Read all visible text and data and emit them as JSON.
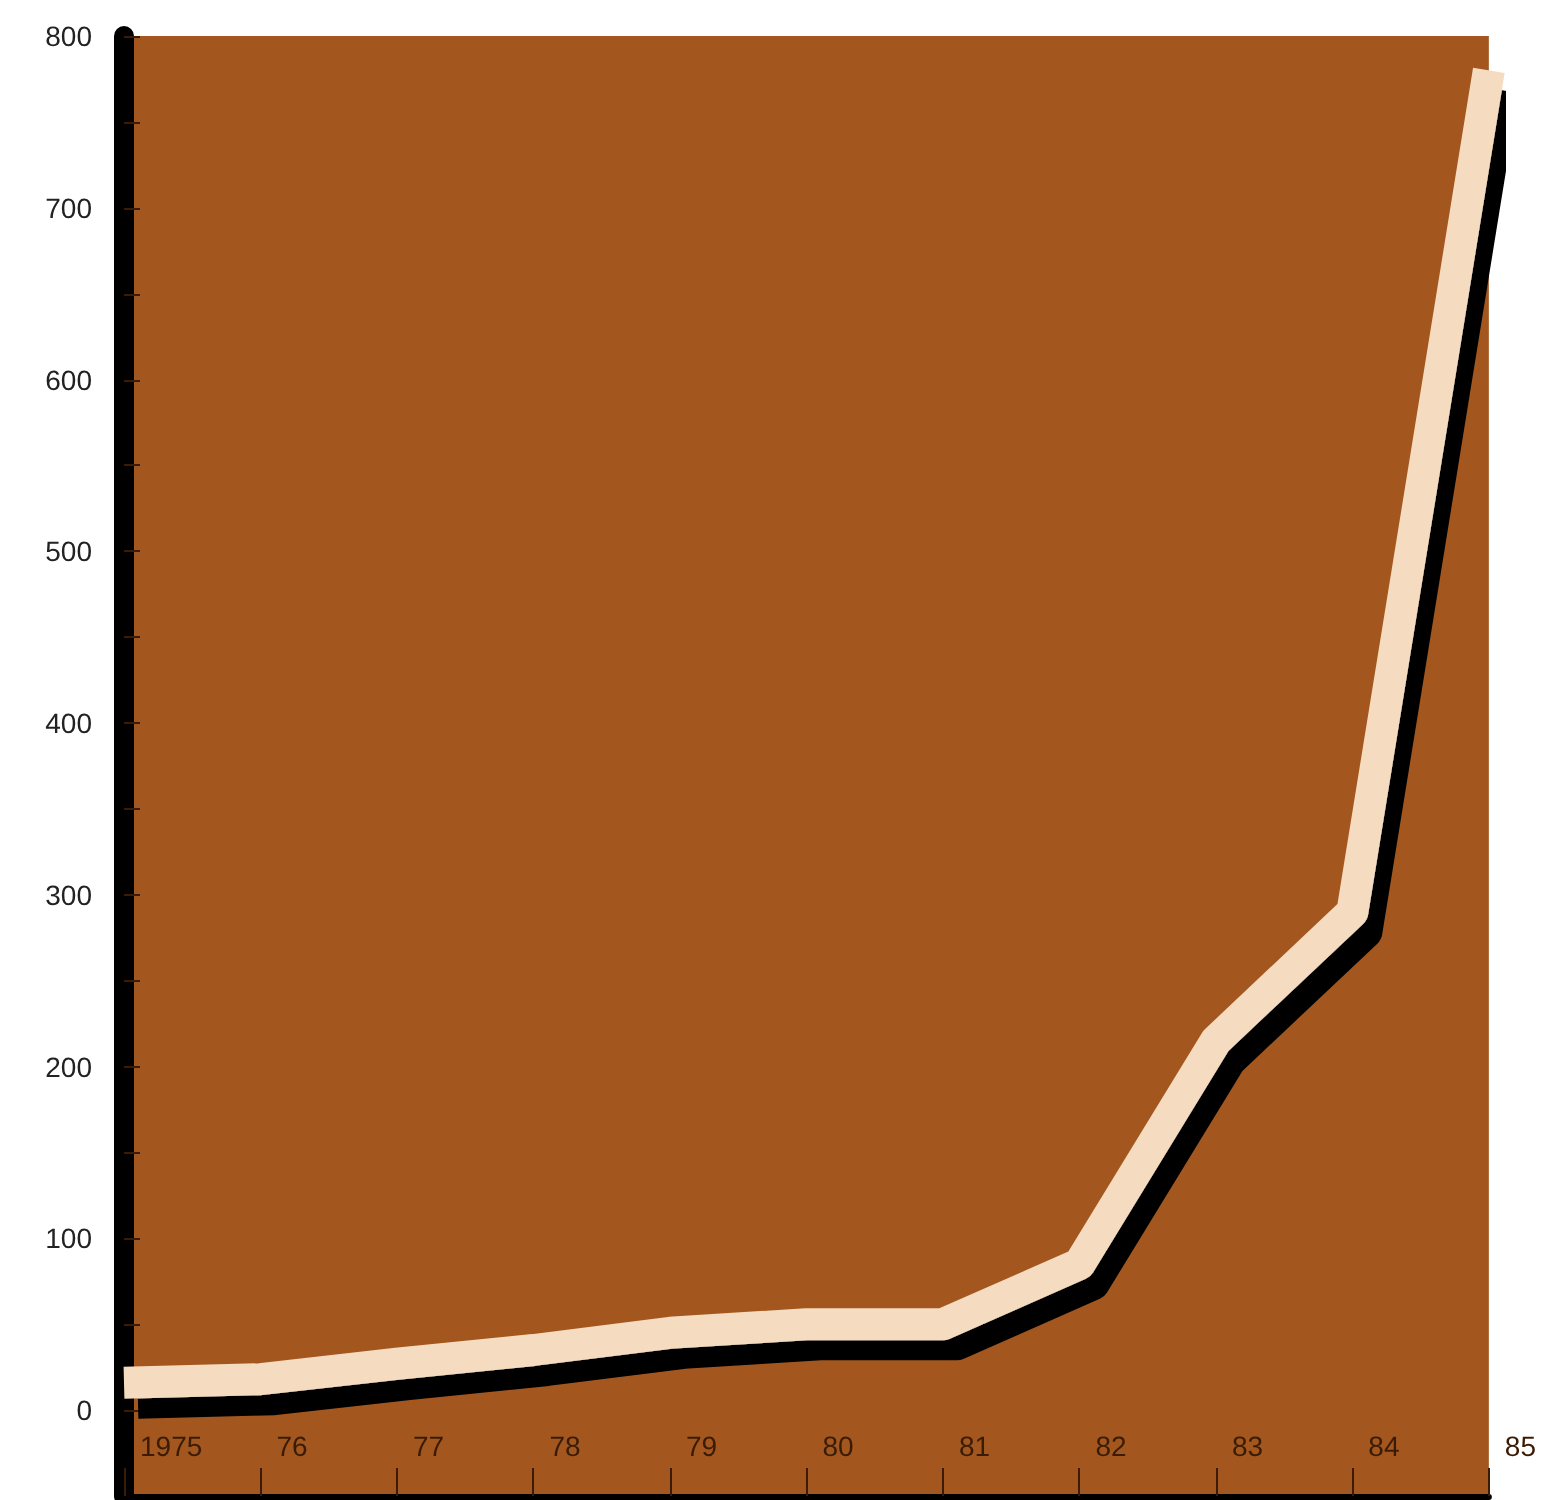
{
  "chart_data": {
    "type": "line",
    "categories": [
      "1975",
      "76",
      "77",
      "78",
      "79",
      "80",
      "81",
      "82",
      "83",
      "84",
      "85"
    ],
    "series": [
      {
        "color": "#f5dcc0",
        "values": [
          16,
          18,
          27,
          35,
          45,
          50,
          50,
          85,
          215,
          290,
          780
        ]
      }
    ],
    "ylim": [
      -50,
      800
    ],
    "yticks": [
      0,
      {
        "value": 50,
        "label": null
      },
      100,
      {
        "value": 150,
        "label": null
      },
      200,
      {
        "value": 250,
        "label": null
      },
      300,
      {
        "value": 350,
        "label": null
      },
      400,
      {
        "value": 450,
        "label": null
      },
      500,
      {
        "value": 550,
        "label": null
      },
      600,
      {
        "value": 650,
        "label": null
      },
      700,
      {
        "value": 750,
        "label": null
      },
      800
    ],
    "grid": false,
    "marker": "none",
    "line_style": "solid"
  }
}
